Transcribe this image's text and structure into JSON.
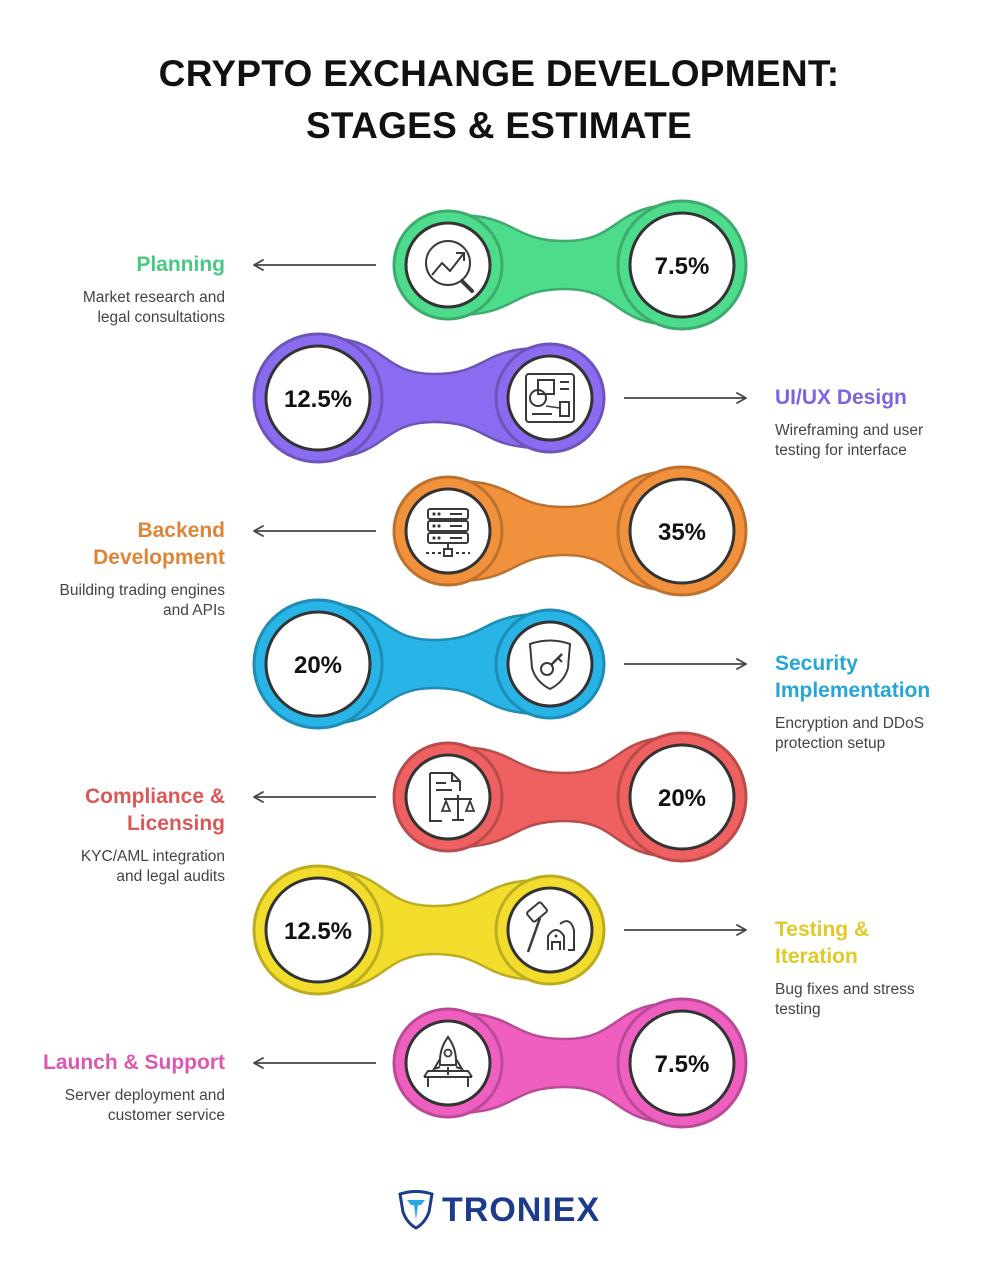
{
  "title": {
    "line1": "CRYPTO EXCHANGE DEVELOPMENT:",
    "line2": "STAGES & ESTIMATE"
  },
  "stages": [
    {
      "name": "Planning",
      "desc": "Market research and\nlegal consultations",
      "percent": "7.5%",
      "side": "left",
      "color": "#4ddb8c",
      "icon": "analysis-chart-icon"
    },
    {
      "name": "UI/UX Design",
      "desc": "Wireframing and user\ntesting for interface",
      "percent": "12.5%",
      "side": "right",
      "color": "#8b6cf0",
      "icon": "wireframe-layout-icon"
    },
    {
      "name": "Backend\nDevelopment",
      "desc": "Building trading engines\nand APIs",
      "percent": "35%",
      "side": "left",
      "color": "#f2913c",
      "icon": "server-stack-icon"
    },
    {
      "name": "Security\nImplementation",
      "desc": "Encryption and DDoS\nprotection setup",
      "percent": "20%",
      "side": "right",
      "color": "#28b4e6",
      "icon": "shield-key-icon"
    },
    {
      "name": "Compliance &\nLicensing",
      "desc": "KYC/AML integration\nand legal audits",
      "percent": "20%",
      "side": "left",
      "color": "#ef6060",
      "icon": "legal-document-scales-icon"
    },
    {
      "name": "Testing &\nIteration",
      "desc": "Bug fixes and stress\ntesting",
      "percent": "12.5%",
      "side": "right",
      "color": "#f2dd2c",
      "icon": "hammer-bug-icon"
    },
    {
      "name": "Launch & Support",
      "desc": "Server deployment and\ncustomer service",
      "percent": "7.5%",
      "side": "left",
      "color": "#ee5fc0",
      "icon": "rocket-launch-icon"
    }
  ],
  "logo": {
    "text": "TRONIEX",
    "color": "#1c3b8c",
    "icon": "troniex-shield-logo-icon"
  }
}
